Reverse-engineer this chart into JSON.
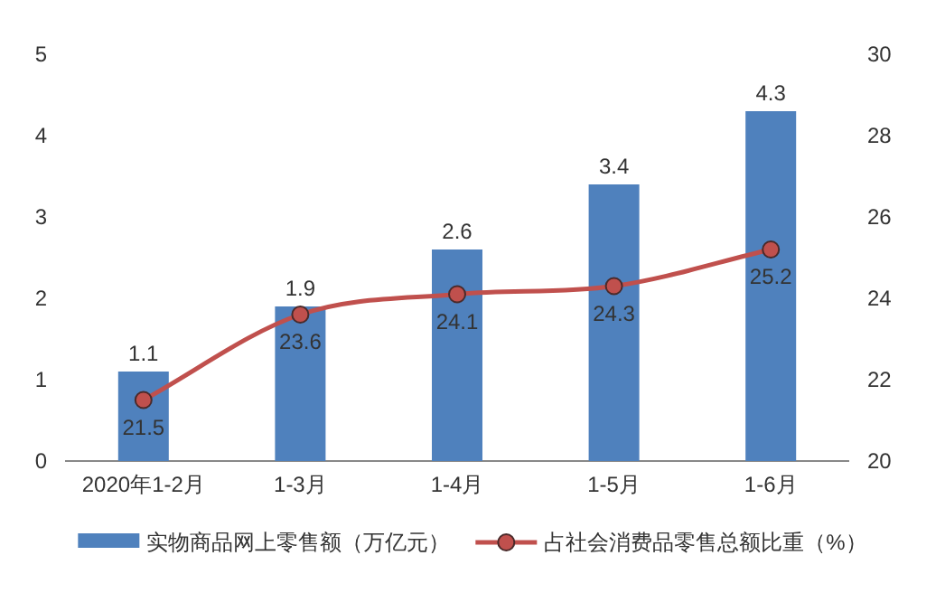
{
  "chart_data": {
    "type": "bar",
    "categories": [
      "2020年1-2月",
      "1-3月",
      "1-4月",
      "1-5月",
      "1-6月"
    ],
    "series": [
      {
        "name": "实物商品网上零售额（万亿元）",
        "color": "#4f81bd",
        "values": [
          1.1,
          1.9,
          2.6,
          3.4,
          4.3
        ]
      },
      {
        "name": "占社会消费品零售总额比重（%）",
        "type": "line",
        "axis": "y2",
        "color": "#c0504d",
        "values": [
          21.5,
          23.6,
          24.1,
          24.3,
          25.2
        ]
      }
    ],
    "ylim": [
      0,
      5
    ],
    "yticks": [
      0,
      1,
      2,
      3,
      4,
      5
    ],
    "y2lim": [
      20,
      30
    ],
    "y2ticks": [
      20,
      22,
      24,
      26,
      28,
      30
    ],
    "marker": "circle",
    "data_labels": true,
    "legend": "bottom",
    "grid": false
  }
}
